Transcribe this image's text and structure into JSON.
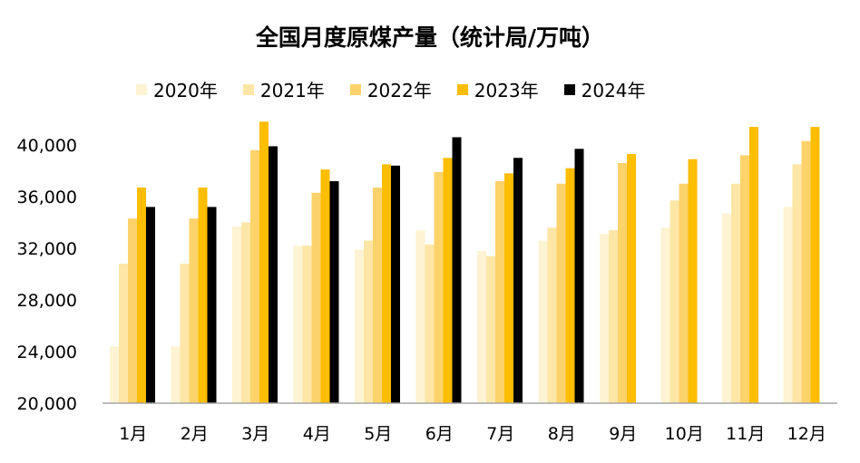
{
  "chart_data": {
    "type": "bar",
    "title": "全国月度原煤产量（统计局/万吨）",
    "xlabel": "",
    "ylabel": "",
    "categories": [
      "1月",
      "2月",
      "3月",
      "4月",
      "5月",
      "6月",
      "7月",
      "8月",
      "9月",
      "10月",
      "11月",
      "12月"
    ],
    "ylim": [
      20000,
      40000
    ],
    "yticks": [
      "20,000",
      "24,000",
      "28,000",
      "32,000",
      "36,000",
      "40,000"
    ],
    "grid": false,
    "legend_position": "top",
    "series": [
      {
        "name": "2020年",
        "color": "#fef3d2",
        "values": [
          24400,
          24400,
          33700,
          32200,
          31900,
          33400,
          31800,
          32600,
          33100,
          33600,
          34700,
          35200
        ]
      },
      {
        "name": "2021年",
        "color": "#fde6a6",
        "values": [
          30800,
          30800,
          34000,
          32200,
          32600,
          32300,
          31400,
          33600,
          33400,
          35700,
          37000,
          38500
        ]
      },
      {
        "name": "2022年",
        "color": "#fcd26a",
        "values": [
          34300,
          34300,
          39600,
          36300,
          36700,
          37900,
          37200,
          37000,
          38600,
          37000,
          39200,
          40300
        ]
      },
      {
        "name": "2023年",
        "color": "#fdbd00",
        "values": [
          36700,
          36700,
          41800,
          38100,
          38500,
          39000,
          37800,
          38200,
          39300,
          38900,
          41400,
          41400
        ]
      },
      {
        "name": "2024年",
        "color": "#000000",
        "values": [
          35200,
          35200,
          39900,
          37200,
          38400,
          40600,
          39000,
          39700,
          null,
          null,
          null,
          null
        ]
      }
    ]
  }
}
